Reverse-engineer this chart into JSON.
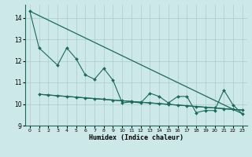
{
  "xlabel": "Humidex (Indice chaleur)",
  "bg_color": "#cce8e8",
  "grid_color": "#aacccc",
  "line_color": "#1a6b5a",
  "jagged_x": [
    0,
    1,
    3,
    4,
    5,
    6,
    7,
    8,
    9,
    10,
    11,
    12,
    13,
    14,
    15,
    16,
    17,
    18,
    19,
    20,
    21,
    22,
    23
  ],
  "jagged_y": [
    14.3,
    12.6,
    11.8,
    12.6,
    12.1,
    11.35,
    11.15,
    11.65,
    11.1,
    10.05,
    10.1,
    10.05,
    10.5,
    10.35,
    10.05,
    10.35,
    10.35,
    9.6,
    9.7,
    9.7,
    10.65,
    9.95,
    9.55
  ],
  "flat_x": [
    1,
    2,
    3,
    4,
    5,
    6,
    7,
    8,
    9,
    10,
    11,
    12,
    13,
    14,
    15,
    16,
    17,
    18,
    19,
    20,
    21,
    22,
    23
  ],
  "flat_y": [
    10.45,
    10.42,
    10.38,
    10.35,
    10.32,
    10.28,
    10.25,
    10.22,
    10.18,
    10.15,
    10.12,
    10.08,
    10.05,
    10.02,
    9.98,
    9.95,
    9.92,
    9.88,
    9.85,
    9.82,
    9.78,
    9.75,
    9.72
  ],
  "trend1_x": [
    0,
    23
  ],
  "trend1_y": [
    14.3,
    9.55
  ],
  "trend2_x": [
    1,
    23
  ],
  "trend2_y": [
    10.45,
    9.72
  ],
  "ylim": [
    9.0,
    14.6
  ],
  "yticks": [
    9,
    10,
    11,
    12,
    13,
    14
  ],
  "xlim": [
    -0.5,
    23.5
  ],
  "xticks": [
    0,
    1,
    2,
    3,
    4,
    5,
    6,
    7,
    8,
    9,
    10,
    11,
    12,
    13,
    14,
    15,
    16,
    17,
    18,
    19,
    20,
    21,
    22,
    23
  ]
}
